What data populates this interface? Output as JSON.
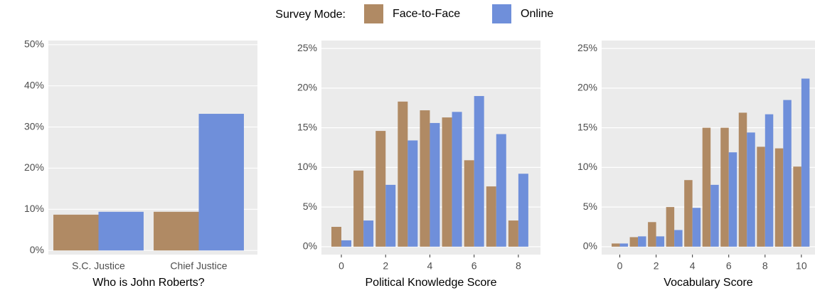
{
  "legend_title": "Survey Mode:",
  "chart_data": [
    {
      "type": "bar",
      "x_label": "Who is John Roberts?",
      "categories": [
        "S.C. Justice",
        "Chief Justice"
      ],
      "series": [
        {
          "name": "Face-to-Face",
          "color": "#b08a64",
          "values": [
            8.7,
            9.4
          ]
        },
        {
          "name": "Online",
          "color": "#6f8fda",
          "values": [
            9.4,
            33.2
          ]
        }
      ],
      "ylim": [
        -1,
        51
      ],
      "yticks": [
        {
          "value": 0,
          "label": "0%"
        },
        {
          "value": 10,
          "label": "10%"
        },
        {
          "value": 20,
          "label": "20%"
        },
        {
          "value": 30,
          "label": "30%"
        },
        {
          "value": 40,
          "label": "40%"
        },
        {
          "value": 50,
          "label": "50%"
        }
      ],
      "grid": true
    },
    {
      "type": "bar",
      "x_label": "Political Knowledge Score",
      "x": [
        0,
        1,
        2,
        3,
        4,
        5,
        6,
        7,
        8
      ],
      "series": [
        {
          "values": [
            2.5,
            9.6,
            14.6,
            18.3,
            17.2,
            16.3,
            10.9,
            7.6,
            3.3
          ]
        },
        {
          "values": [
            0.8,
            3.3,
            7.8,
            13.4,
            15.6,
            17.0,
            19.0,
            14.2,
            9.2
          ]
        }
      ],
      "xlim": [
        -0.9,
        9.0
      ],
      "xticks": [
        0,
        2,
        4,
        6,
        8
      ],
      "ylim": [
        -1,
        26
      ],
      "yticks": [
        {
          "value": 0,
          "label": "0%"
        },
        {
          "value": 5,
          "label": "5%"
        },
        {
          "value": 10,
          "label": "10%"
        },
        {
          "value": 15,
          "label": "15%"
        },
        {
          "value": 20,
          "label": "20%"
        },
        {
          "value": 25,
          "label": "25%"
        }
      ],
      "grid": true
    },
    {
      "type": "bar",
      "x_label": "Vocabulary Score",
      "x": [
        0,
        1,
        2,
        3,
        4,
        5,
        6,
        7,
        8,
        9,
        10
      ],
      "series": [
        {
          "values": [
            0.4,
            1.2,
            3.1,
            5.0,
            8.4,
            15.0,
            15.0,
            16.9,
            12.6,
            12.4,
            10.1
          ]
        },
        {
          "values": [
            0.4,
            1.3,
            1.3,
            2.1,
            4.9,
            7.8,
            11.9,
            14.4,
            16.7,
            18.5,
            21.2
          ]
        }
      ],
      "xlim": [
        -1.0,
        10.75
      ],
      "xticks": [
        0,
        2,
        4,
        6,
        8,
        10
      ],
      "ylim": [
        -1,
        26
      ],
      "yticks": [
        {
          "value": 0,
          "label": "0%"
        },
        {
          "value": 5,
          "label": "5%"
        },
        {
          "value": 10,
          "label": "10%"
        },
        {
          "value": 15,
          "label": "15%"
        },
        {
          "value": 20,
          "label": "20%"
        },
        {
          "value": 25,
          "label": "25%"
        }
      ],
      "grid": true
    }
  ]
}
